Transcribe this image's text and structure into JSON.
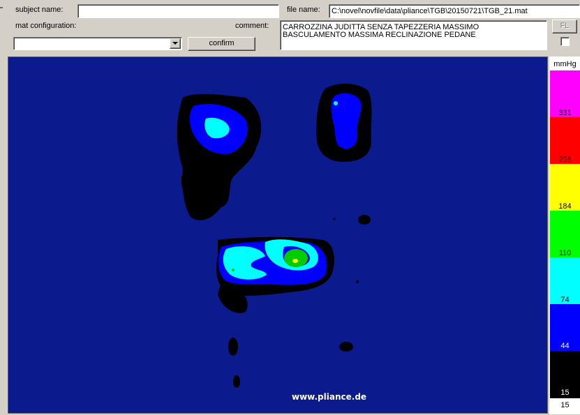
{
  "form": {
    "subject_label": "subject name:",
    "subject_value": "",
    "file_label": "file name:",
    "file_value": "C:\\novel\\novfile\\data\\pliance\\TGB\\20150721\\TGB_21.mat",
    "mat_config_label": "mat configuration:",
    "mat_config_value": "",
    "comment_label": "comment:",
    "comment_line1": "CARROZZINA JUDITTA SENZA TAPEZZERIA MASSIMO",
    "comment_line2": "BASCULAMENTO MASSIMA RECLINAZIONE PEDANE",
    "confirm_label": "confirm",
    "fl_label": "FL",
    "checkbox_checked": false
  },
  "heatmap": {
    "watermark": "www.pliance.de",
    "background_color": "#0b1a8c"
  },
  "scale": {
    "unit": "mmHg",
    "ticks": [
      "331",
      "258",
      "184",
      "110",
      "74",
      "44",
      "15"
    ],
    "bottom_label": "15",
    "colors": {
      "magenta": "#ff00ff",
      "red": "#ff0000",
      "yellow": "#ffff00",
      "green": "#00ff00",
      "cyan": "#00ffff",
      "blue": "#0000ff",
      "black": "#000000"
    }
  }
}
